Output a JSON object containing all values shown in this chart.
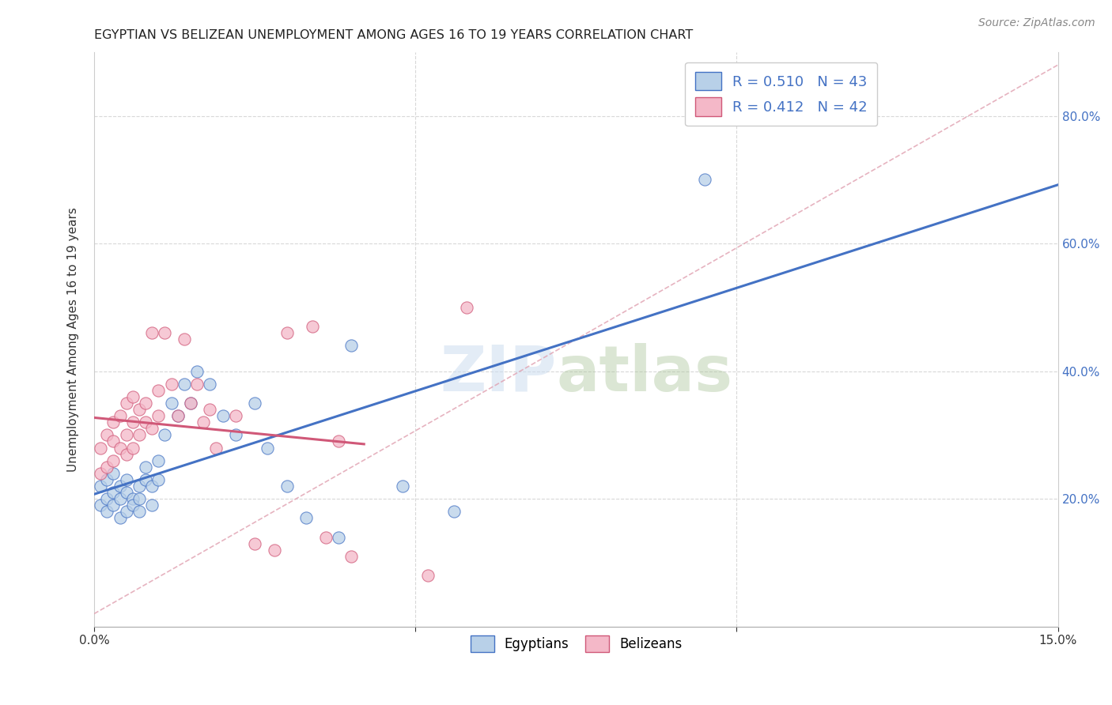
{
  "title": "EGYPTIAN VS BELIZEAN UNEMPLOYMENT AMONG AGES 16 TO 19 YEARS CORRELATION CHART",
  "source": "Source: ZipAtlas.com",
  "ylabel": "Unemployment Among Ages 16 to 19 years",
  "xlim": [
    0.0,
    0.15
  ],
  "ylim": [
    0.0,
    0.9
  ],
  "color_egyptian": "#b8d0e8",
  "color_belizean": "#f4b8c8",
  "color_line_egyptian": "#4472c4",
  "color_line_belizean": "#d05878",
  "color_trend_dashed": "#c8a0b0",
  "watermark_zip": "ZIP",
  "watermark_atlas": "atlas",
  "egyptians_x": [
    0.001,
    0.001,
    0.002,
    0.002,
    0.002,
    0.003,
    0.003,
    0.003,
    0.004,
    0.004,
    0.004,
    0.005,
    0.005,
    0.005,
    0.006,
    0.006,
    0.007,
    0.007,
    0.007,
    0.008,
    0.008,
    0.009,
    0.009,
    0.01,
    0.01,
    0.011,
    0.012,
    0.013,
    0.014,
    0.015,
    0.016,
    0.018,
    0.02,
    0.022,
    0.025,
    0.027,
    0.03,
    0.033,
    0.038,
    0.04,
    0.048,
    0.056,
    0.095
  ],
  "egyptians_y": [
    0.19,
    0.22,
    0.18,
    0.2,
    0.23,
    0.19,
    0.21,
    0.24,
    0.2,
    0.22,
    0.17,
    0.21,
    0.18,
    0.23,
    0.2,
    0.19,
    0.22,
    0.2,
    0.18,
    0.23,
    0.25,
    0.22,
    0.19,
    0.26,
    0.23,
    0.3,
    0.35,
    0.33,
    0.38,
    0.35,
    0.4,
    0.38,
    0.33,
    0.3,
    0.35,
    0.28,
    0.22,
    0.17,
    0.14,
    0.44,
    0.22,
    0.18,
    0.7
  ],
  "belizeans_x": [
    0.001,
    0.001,
    0.002,
    0.002,
    0.003,
    0.003,
    0.003,
    0.004,
    0.004,
    0.005,
    0.005,
    0.005,
    0.006,
    0.006,
    0.006,
    0.007,
    0.007,
    0.008,
    0.008,
    0.009,
    0.009,
    0.01,
    0.01,
    0.011,
    0.012,
    0.013,
    0.014,
    0.015,
    0.016,
    0.017,
    0.018,
    0.019,
    0.022,
    0.025,
    0.028,
    0.03,
    0.034,
    0.036,
    0.038,
    0.04,
    0.052,
    0.058
  ],
  "belizeans_y": [
    0.24,
    0.28,
    0.25,
    0.3,
    0.26,
    0.29,
    0.32,
    0.28,
    0.33,
    0.27,
    0.3,
    0.35,
    0.28,
    0.32,
    0.36,
    0.3,
    0.34,
    0.32,
    0.35,
    0.31,
    0.46,
    0.33,
    0.37,
    0.46,
    0.38,
    0.33,
    0.45,
    0.35,
    0.38,
    0.32,
    0.34,
    0.28,
    0.33,
    0.13,
    0.12,
    0.46,
    0.47,
    0.14,
    0.29,
    0.11,
    0.08,
    0.5
  ]
}
